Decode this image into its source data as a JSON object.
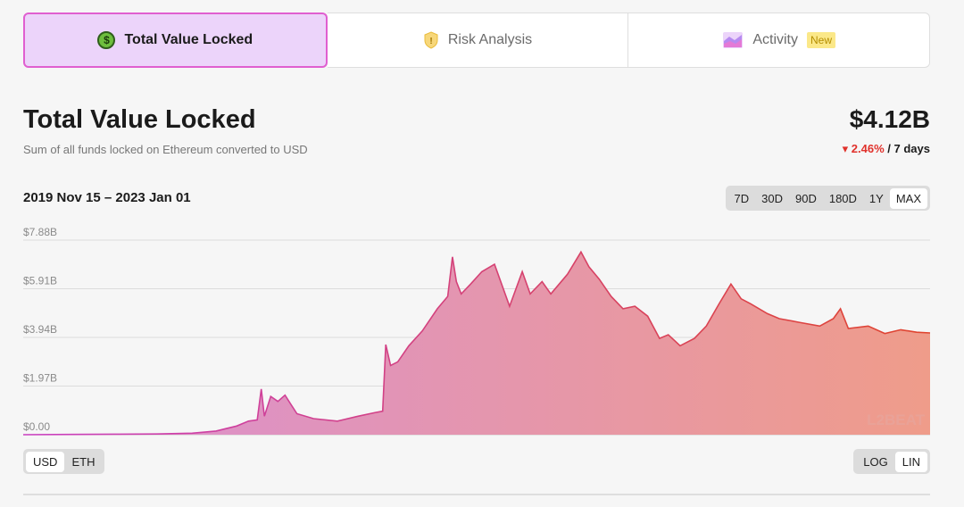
{
  "tabs": [
    {
      "label": "Total Value Locked",
      "icon": "dollar-coin-icon",
      "active": true
    },
    {
      "label": "Risk Analysis",
      "icon": "shield-icon",
      "active": false
    },
    {
      "label": "Activity",
      "icon": "area-chart-icon",
      "active": false,
      "badge": "New"
    }
  ],
  "header": {
    "title": "Total Value Locked",
    "subtitle": "Sum of all funds locked on Ethereum converted to USD",
    "value": "$4.12B",
    "change_pct": "2.46%",
    "change_period": "/ 7 days",
    "change_direction": "down"
  },
  "date_range": "2019 Nov 15 – 2023 Jan 01",
  "range_buttons": [
    "7D",
    "30D",
    "90D",
    "180D",
    "1Y",
    "MAX"
  ],
  "range_selected": "MAX",
  "currency_toggle": {
    "options": [
      "USD",
      "ETH"
    ],
    "selected": "USD"
  },
  "scale_toggle": {
    "options": [
      "LOG",
      "LIN"
    ],
    "selected": "LIN"
  },
  "watermark": "L2BEAT",
  "colors": {
    "accent_border": "#e05fd0",
    "active_tab_bg": "#ecd4fa",
    "fill_start": "#d98fd4",
    "fill_end": "#ef9c8a",
    "line_start": "#c93fc0",
    "line_end": "#e0442d",
    "negative": "#e0312b"
  },
  "chart_data": {
    "type": "area",
    "title": "",
    "xlabel": "",
    "ylabel": "",
    "y_tick_labels": [
      "$0.00",
      "$1.97B",
      "$3.94B",
      "$5.91B",
      "$7.88B"
    ],
    "y_ticks": [
      0,
      1.97,
      3.94,
      5.91,
      7.88
    ],
    "ylim": [
      0,
      7.88
    ],
    "y_unit": "USD billions",
    "x_range": [
      "2019-11-15",
      "2023-01-01"
    ],
    "grid": true,
    "series": [
      {
        "values": [
          [
            "2019-11-15",
            0.0
          ],
          [
            "2020-01-15",
            0.01
          ],
          [
            "2020-03-15",
            0.02
          ],
          [
            "2020-05-01",
            0.03
          ],
          [
            "2020-06-15",
            0.06
          ],
          [
            "2020-07-15",
            0.15
          ],
          [
            "2020-08-10",
            0.35
          ],
          [
            "2020-08-25",
            0.55
          ],
          [
            "2020-09-05",
            0.6
          ],
          [
            "2020-09-10",
            1.85
          ],
          [
            "2020-09-14",
            0.75
          ],
          [
            "2020-09-22",
            1.55
          ],
          [
            "2020-10-01",
            1.35
          ],
          [
            "2020-10-10",
            1.6
          ],
          [
            "2020-10-18",
            1.2
          ],
          [
            "2020-10-25",
            0.85
          ],
          [
            "2020-11-15",
            0.65
          ],
          [
            "2020-12-15",
            0.55
          ],
          [
            "2021-01-10",
            0.75
          ],
          [
            "2021-02-01",
            0.9
          ],
          [
            "2021-02-10",
            0.95
          ],
          [
            "2021-02-14",
            3.65
          ],
          [
            "2021-02-20",
            2.8
          ],
          [
            "2021-03-01",
            2.95
          ],
          [
            "2021-03-15",
            3.6
          ],
          [
            "2021-04-01",
            4.2
          ],
          [
            "2021-04-20",
            5.1
          ],
          [
            "2021-05-03",
            5.6
          ],
          [
            "2021-05-09",
            7.2
          ],
          [
            "2021-05-14",
            6.2
          ],
          [
            "2021-05-20",
            5.7
          ],
          [
            "2021-06-01",
            6.1
          ],
          [
            "2021-06-15",
            6.6
          ],
          [
            "2021-07-01",
            6.9
          ],
          [
            "2021-07-20",
            5.2
          ],
          [
            "2021-08-05",
            6.6
          ],
          [
            "2021-08-15",
            5.7
          ],
          [
            "2021-08-30",
            6.2
          ],
          [
            "2021-09-10",
            5.7
          ],
          [
            "2021-10-01",
            6.5
          ],
          [
            "2021-10-18",
            7.4
          ],
          [
            "2021-10-28",
            6.8
          ],
          [
            "2021-11-10",
            6.3
          ],
          [
            "2021-11-25",
            5.6
          ],
          [
            "2021-12-10",
            5.1
          ],
          [
            "2021-12-25",
            5.2
          ],
          [
            "2022-01-10",
            4.8
          ],
          [
            "2022-01-25",
            3.9
          ],
          [
            "2022-02-05",
            4.05
          ],
          [
            "2022-02-20",
            3.6
          ],
          [
            "2022-03-10",
            3.9
          ],
          [
            "2022-03-25",
            4.4
          ],
          [
            "2022-04-10",
            5.3
          ],
          [
            "2022-04-25",
            6.1
          ],
          [
            "2022-05-08",
            5.5
          ],
          [
            "2022-05-20",
            5.3
          ],
          [
            "2022-06-10",
            4.9
          ],
          [
            "2022-06-25",
            4.7
          ],
          [
            "2022-07-20",
            4.55
          ],
          [
            "2022-08-15",
            4.4
          ],
          [
            "2022-09-01",
            4.7
          ],
          [
            "2022-09-10",
            5.1
          ],
          [
            "2022-09-20",
            4.3
          ],
          [
            "2022-10-15",
            4.4
          ],
          [
            "2022-11-05",
            4.1
          ],
          [
            "2022-11-25",
            4.25
          ],
          [
            "2022-12-15",
            4.15
          ],
          [
            "2023-01-01",
            4.12
          ]
        ]
      }
    ]
  }
}
